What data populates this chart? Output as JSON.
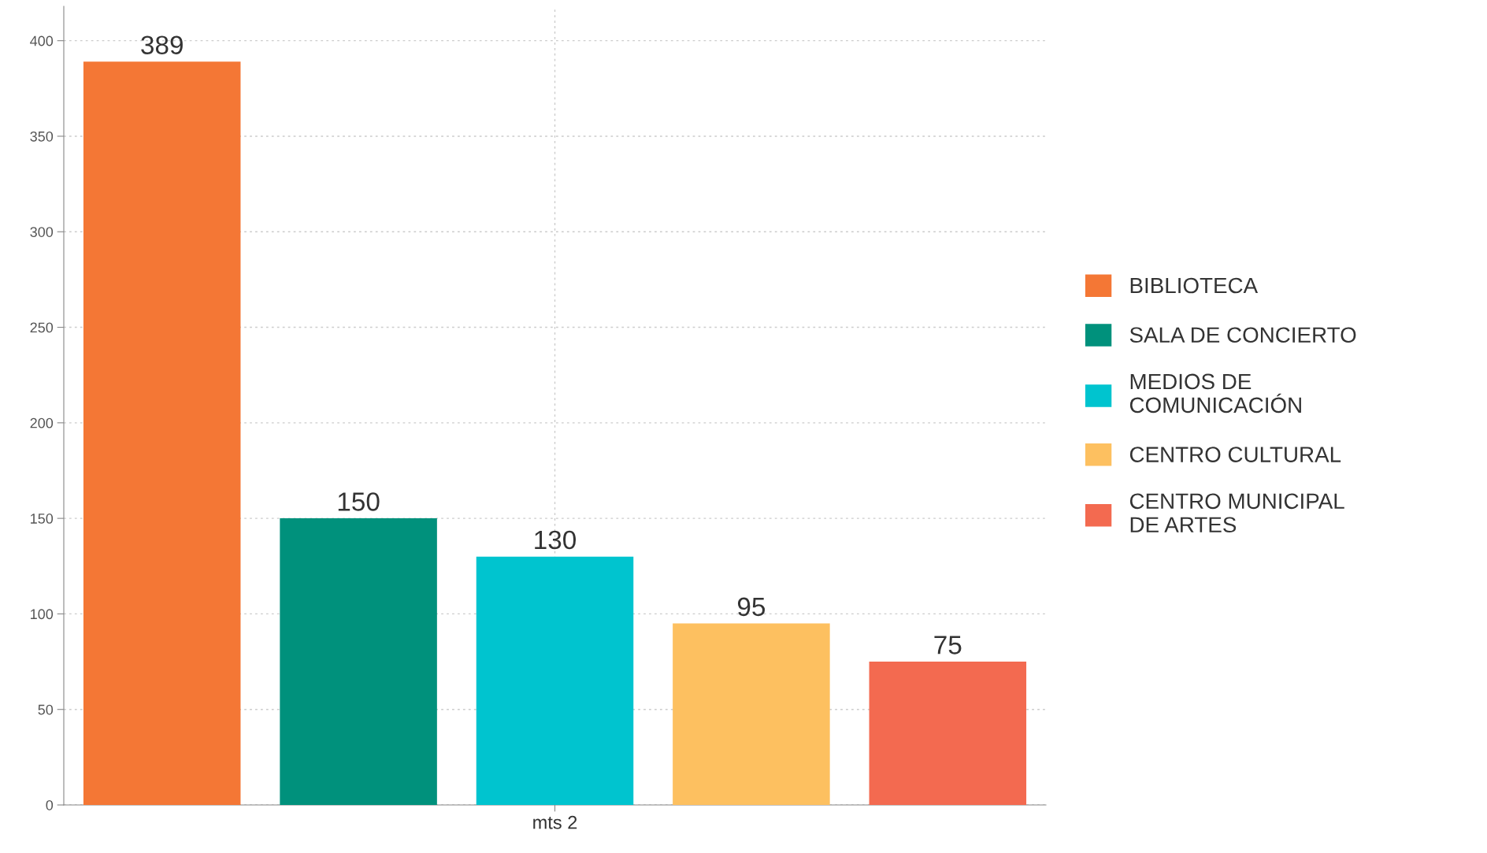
{
  "chart_data": {
    "type": "bar",
    "categories": [
      "mts 2"
    ],
    "series": [
      {
        "name": "BIBLIOTECA",
        "color": "#f47735",
        "values": [
          389
        ]
      },
      {
        "name": "SALA DE CONCIERTO",
        "color": "#00917c",
        "values": [
          150
        ]
      },
      {
        "name": "MEDIOS DE COMUNICACIÓN",
        "color": "#00c4cf",
        "values": [
          130
        ]
      },
      {
        "name": "CENTRO CULTURAL",
        "color": "#fdc060",
        "values": [
          95
        ]
      },
      {
        "name": "CENTRO MUNICIPAL DE ARTES",
        "color": "#f36a50",
        "values": [
          75
        ]
      }
    ],
    "ylim": [
      0,
      418
    ],
    "yticks": [
      0,
      50,
      100,
      150,
      200,
      250,
      300,
      350,
      400
    ],
    "grid": true,
    "legend": "right",
    "data_labels": true
  }
}
